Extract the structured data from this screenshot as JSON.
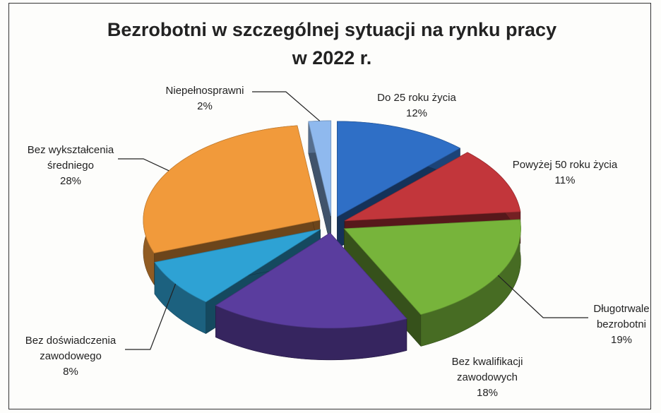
{
  "chart_data": {
    "type": "pie3d",
    "title": "Bezrobotni w szczególnej sytuacji na rynku pracy w 2022 r.",
    "categories": [
      "Do 25 roku życia",
      "Powyżej 50 roku życia",
      "Długotrwale bezrobotni",
      "Bez kwalifikacji zawodowych",
      "Bez doświadczenia zawodowego",
      "Bez wykształcenia średniego",
      "Niepełnosprawni"
    ],
    "values": [
      12,
      11,
      19,
      18,
      8,
      28,
      2
    ],
    "value_labels": [
      "12%",
      "11%",
      "19%",
      "18%",
      "8%",
      "28%",
      "2%"
    ],
    "colors": [
      "#2f6fc6",
      "#c2363b",
      "#77b43b",
      "#5a3d9e",
      "#2ea2d4",
      "#f19a3b",
      "#8fb9ee"
    ]
  }
}
